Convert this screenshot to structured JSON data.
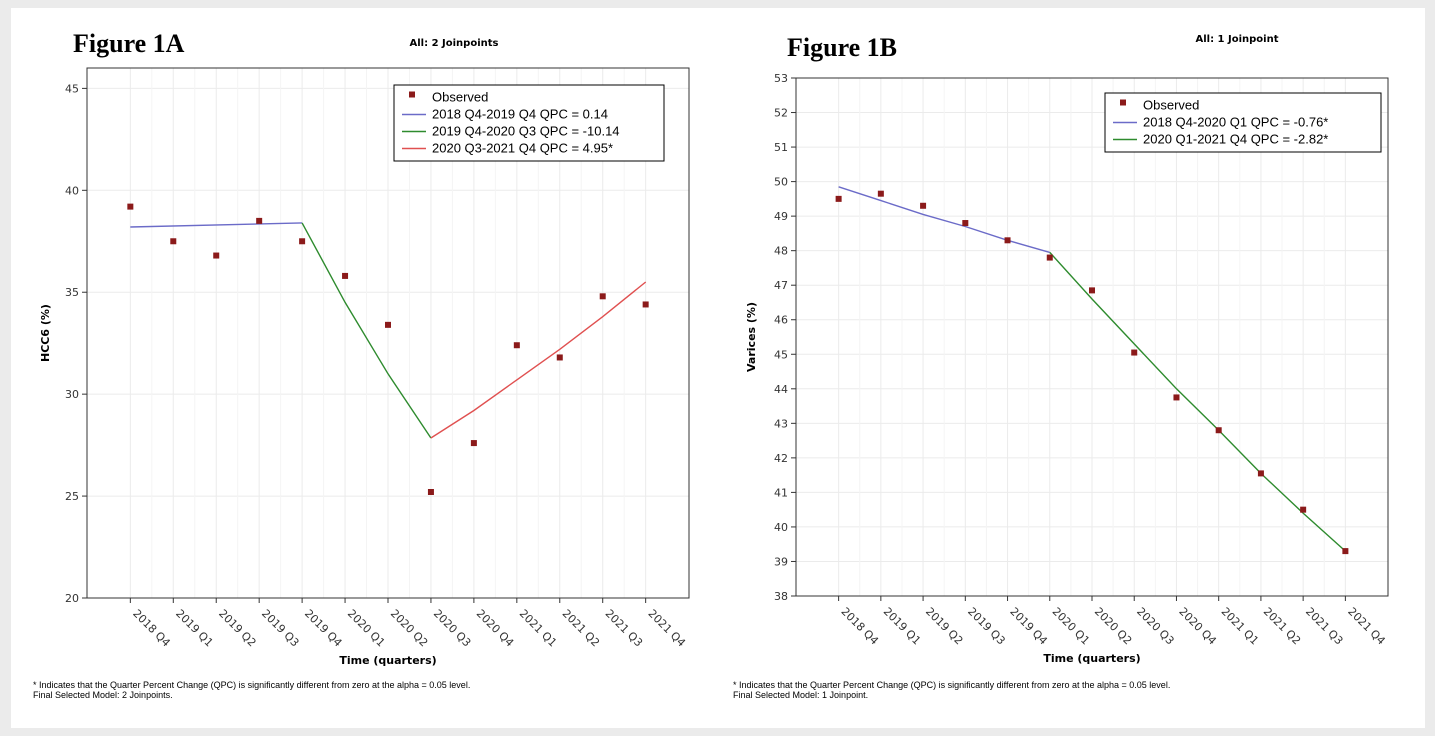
{
  "chart_data": [
    {
      "type": "scatter",
      "figure_label": "Figure 1A",
      "title": "All: 2 Joinpoints",
      "xlabel": "Time (quarters)",
      "ylabel": "HCC6 (%)",
      "ylim": [
        20,
        46
      ],
      "yticks": [
        20,
        25,
        30,
        35,
        40,
        45
      ],
      "categories": [
        "2018 Q4",
        "2019 Q1",
        "2019 Q2",
        "2019 Q3",
        "2019 Q4",
        "2020 Q1",
        "2020 Q2",
        "2020 Q3",
        "2020 Q4",
        "2021 Q1",
        "2021 Q2",
        "2021 Q3",
        "2021 Q4"
      ],
      "grid": true,
      "legend_position": "top-right",
      "observed": {
        "name": "Observed",
        "color": "#8b1a1a",
        "values": [
          39.2,
          37.5,
          36.8,
          38.5,
          37.5,
          35.8,
          33.4,
          25.2,
          27.6,
          32.4,
          31.8,
          34.8,
          34.4
        ]
      },
      "segments": [
        {
          "name": "2018 Q4-2019 Q4 QPC =  0.14",
          "color": "#6b6bc8",
          "points": [
            [
              "2018 Q4",
              38.2
            ],
            [
              "2019 Q4",
              38.4
            ]
          ]
        },
        {
          "name": "2019 Q4-2020 Q3 QPC = -10.14",
          "color": "#2e8b2e",
          "points": [
            [
              "2019 Q4",
              38.4
            ],
            [
              "2020 Q1",
              34.5
            ],
            [
              "2020 Q2",
              31.0
            ],
            [
              "2020 Q3",
              27.85
            ]
          ]
        },
        {
          "name": "2020 Q3-2021 Q4 QPC =  4.95*",
          "color": "#e05050",
          "points": [
            [
              "2020 Q3",
              27.85
            ],
            [
              "2020 Q4",
              29.2
            ],
            [
              "2021 Q1",
              30.7
            ],
            [
              "2021 Q2",
              32.2
            ],
            [
              "2021 Q3",
              33.8
            ],
            [
              "2021 Q4",
              35.5
            ]
          ]
        }
      ],
      "footnote_lines": [
        "* Indicates that the Quarter Percent Change (QPC) is significantly different from zero at the alpha = 0.05 level.",
        "Final Selected Model: 2 Joinpoints."
      ]
    },
    {
      "type": "scatter",
      "figure_label": "Figure 1B",
      "title": "All: 1 Joinpoint",
      "xlabel": "Time (quarters)",
      "ylabel": "Varices (%)",
      "ylim": [
        38,
        53
      ],
      "yticks": [
        38,
        39,
        40,
        41,
        42,
        43,
        44,
        45,
        46,
        47,
        48,
        49,
        50,
        51,
        52,
        53
      ],
      "categories": [
        "2018 Q4",
        "2019 Q1",
        "2019 Q2",
        "2019 Q3",
        "2019 Q4",
        "2020 Q1",
        "2020 Q2",
        "2020 Q3",
        "2020 Q4",
        "2021 Q1",
        "2021 Q2",
        "2021 Q3",
        "2021 Q4"
      ],
      "grid": true,
      "legend_position": "top-right",
      "observed": {
        "name": "Observed",
        "color": "#8b1a1a",
        "values": [
          49.5,
          49.65,
          49.3,
          48.8,
          48.3,
          47.8,
          46.85,
          45.05,
          43.75,
          42.8,
          41.55,
          40.5,
          39.3
        ]
      },
      "segments": [
        {
          "name": "2018 Q4-2020 Q1 QPC = -0.76*",
          "color": "#6b6bc8",
          "points": [
            [
              "2018 Q4",
              49.85
            ],
            [
              "2019 Q1",
              49.45
            ],
            [
              "2019 Q2",
              49.05
            ],
            [
              "2019 Q3",
              48.7
            ],
            [
              "2019 Q4",
              48.3
            ],
            [
              "2020 Q1",
              47.95
            ]
          ]
        },
        {
          "name": "2020 Q1-2021 Q4 QPC = -2.82*",
          "color": "#2e8b2e",
          "points": [
            [
              "2020 Q1",
              47.95
            ],
            [
              "2020 Q2",
              46.6
            ],
            [
              "2020 Q3",
              45.3
            ],
            [
              "2020 Q4",
              44.0
            ],
            [
              "2021 Q1",
              42.8
            ],
            [
              "2021 Q2",
              41.55
            ],
            [
              "2021 Q3",
              40.4
            ],
            [
              "2021 Q4",
              39.3
            ]
          ]
        }
      ],
      "footnote_lines": [
        "* Indicates that the Quarter Percent Change (QPC) is significantly different from zero at the alpha = 0.05 level.",
        "Final Selected Model: 1 Joinpoint."
      ]
    }
  ]
}
